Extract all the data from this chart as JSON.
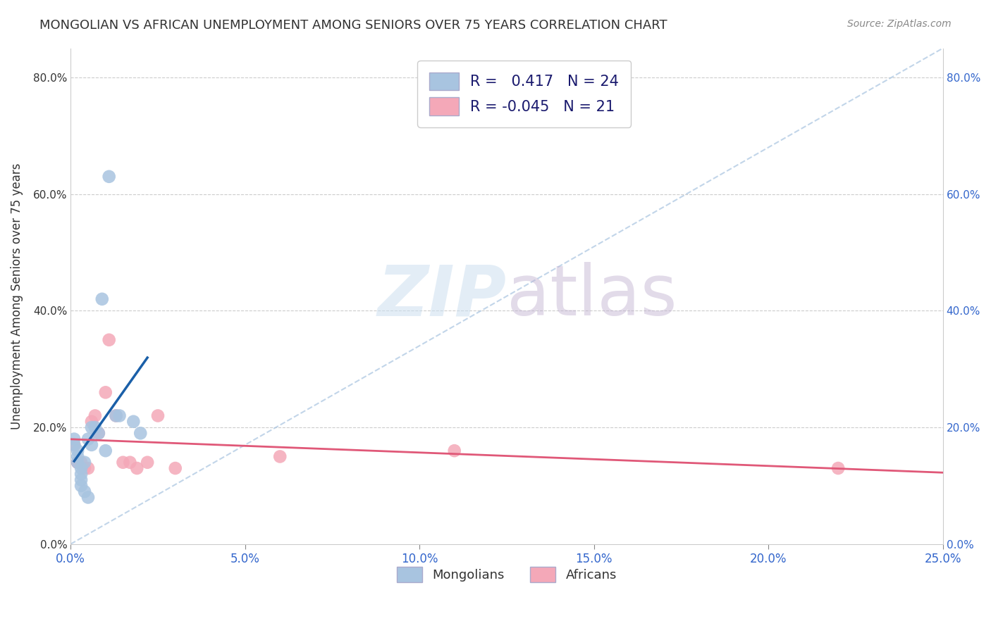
{
  "title": "MONGOLIAN VS AFRICAN UNEMPLOYMENT AMONG SENIORS OVER 75 YEARS CORRELATION CHART",
  "source": "Source: ZipAtlas.com",
  "ylabel": "Unemployment Among Seniors over 75 years",
  "xlim": [
    0.0,
    0.25
  ],
  "ylim": [
    0.0,
    0.85
  ],
  "xticks": [
    0.0,
    0.05,
    0.1,
    0.15,
    0.2,
    0.25
  ],
  "yticks": [
    0.0,
    0.2,
    0.4,
    0.6,
    0.8
  ],
  "mongolians_x": [
    0.001,
    0.001,
    0.002,
    0.002,
    0.002,
    0.003,
    0.003,
    0.003,
    0.003,
    0.004,
    0.004,
    0.005,
    0.005,
    0.006,
    0.006,
    0.007,
    0.008,
    0.009,
    0.01,
    0.011,
    0.013,
    0.014,
    0.018,
    0.02
  ],
  "mongolians_y": [
    0.18,
    0.17,
    0.16,
    0.15,
    0.14,
    0.13,
    0.12,
    0.11,
    0.1,
    0.14,
    0.09,
    0.08,
    0.18,
    0.17,
    0.2,
    0.2,
    0.19,
    0.42,
    0.16,
    0.63,
    0.22,
    0.22,
    0.21,
    0.19
  ],
  "africans_x": [
    0.001,
    0.002,
    0.002,
    0.003,
    0.004,
    0.005,
    0.006,
    0.007,
    0.008,
    0.01,
    0.011,
    0.013,
    0.015,
    0.017,
    0.019,
    0.022,
    0.025,
    0.03,
    0.06,
    0.11,
    0.22
  ],
  "africans_y": [
    0.17,
    0.14,
    0.14,
    0.14,
    0.13,
    0.13,
    0.21,
    0.22,
    0.19,
    0.26,
    0.35,
    0.22,
    0.14,
    0.14,
    0.13,
    0.14,
    0.22,
    0.13,
    0.15,
    0.16,
    0.13
  ],
  "mongolian_R": 0.417,
  "mongolian_N": 24,
  "african_R": -0.045,
  "african_N": 21,
  "mongolian_scatter_color": "#a8c4e0",
  "african_scatter_color": "#f4a8b8",
  "mongolian_line_color": "#1a5fa8",
  "african_line_color": "#e05878",
  "dash_line_color": "#a8c4e0",
  "grid_color": "#cccccc",
  "title_color": "#333333",
  "source_color": "#888888",
  "ylabel_color": "#333333",
  "xtick_color": "#3366cc",
  "ytick_right_color": "#3366cc",
  "ytick_left_color": "#333333",
  "legend_text_color": "#1a1a6e"
}
